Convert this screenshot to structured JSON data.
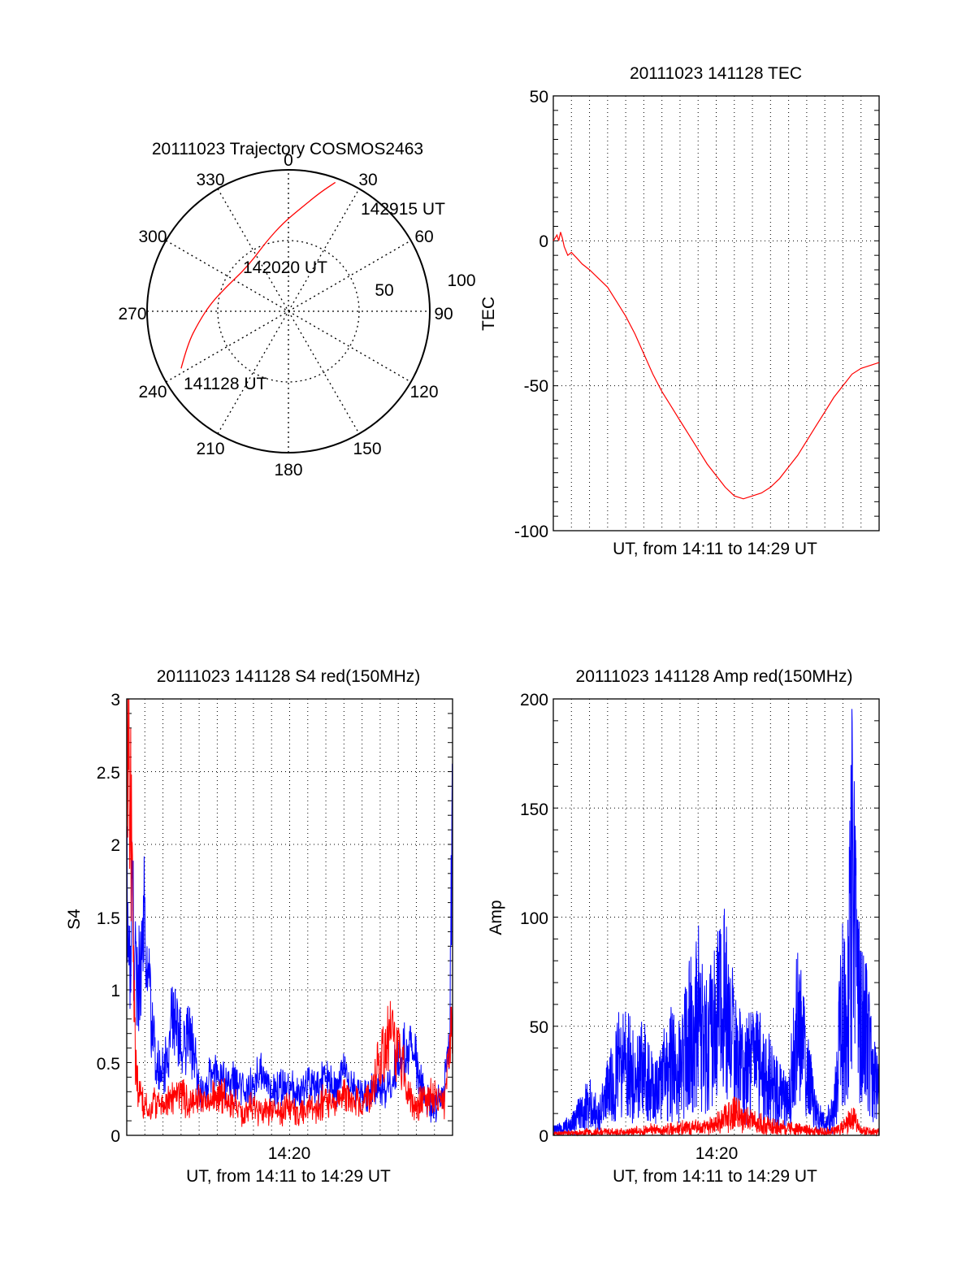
{
  "chart_data": [
    {
      "type": "polar",
      "title": "20111023 Trajectory COSMOS2463",
      "azimuth_labels": [
        "0",
        "30",
        "60",
        "90",
        "120",
        "150",
        "180",
        "210",
        "240",
        "270",
        "300",
        "330"
      ],
      "elevation_ring_labels": [
        "50",
        "100"
      ],
      "elevation_max": 100,
      "trajectory_color": "#ff0000",
      "trajectory_points_az_r": [
        [
          242,
          86
        ],
        [
          252,
          75
        ],
        [
          263,
          64
        ],
        [
          276,
          55
        ],
        [
          292,
          47
        ],
        [
          310,
          43
        ],
        [
          328,
          45
        ],
        [
          343,
          52
        ],
        [
          357,
          63
        ],
        [
          8,
          75
        ],
        [
          15,
          87
        ],
        [
          20,
          97
        ]
      ],
      "annotations": [
        {
          "text": "142915 UT",
          "at": "end"
        },
        {
          "text": "142020 UT",
          "at": "middle"
        },
        {
          "text": "141128 UT",
          "at": "start"
        }
      ]
    },
    {
      "type": "line",
      "title": "20111023 141128 TEC",
      "xlabel": "UT, from 14:11 to 14:29 UT",
      "ylabel": "TEC",
      "xlim": [
        0,
        18.0
      ],
      "ylim": [
        -100,
        50
      ],
      "yticks": [
        "50",
        "0",
        "-50",
        "-100"
      ],
      "grid": true,
      "series": [
        {
          "color": "#ff0000",
          "x": [
            0.0,
            0.2,
            0.3,
            0.4,
            0.5,
            0.6,
            0.8,
            1.0,
            1.3,
            1.6,
            2.0,
            2.5,
            3.0,
            3.5,
            4.0,
            4.5,
            5.0,
            5.5,
            6.0,
            6.5,
            7.0,
            7.5,
            8.0,
            8.5,
            9.0,
            9.5,
            10.0,
            10.5,
            11.0,
            11.5,
            12.0,
            12.5,
            13.0,
            13.5,
            14.0,
            14.5,
            15.0,
            15.5,
            16.0,
            16.5,
            17.0,
            17.5,
            18.0
          ],
          "y": [
            0,
            2,
            0,
            3,
            1,
            -2,
            -5,
            -4,
            -6,
            -8,
            -10,
            -13,
            -16,
            -21,
            -26,
            -32,
            -39,
            -46,
            -52,
            -57,
            -62,
            -67,
            -72,
            -77,
            -81,
            -85,
            -88,
            -89,
            -88,
            -87,
            -85,
            -82,
            -78,
            -74,
            -69,
            -64,
            -59,
            -54,
            -50,
            -46,
            -44,
            -43,
            -42
          ]
        }
      ]
    },
    {
      "type": "line",
      "title": "20111023 141128 S4 red(150MHz)",
      "xlabel": "UT, from 14:11 to 14:29 UT",
      "ylabel": "S4",
      "xlim": [
        0,
        18.0
      ],
      "ylim": [
        0,
        3
      ],
      "xtick_label": "14:20",
      "xtick_value": 9.0,
      "yticks": [
        "3",
        "2.5",
        "2",
        "1.5",
        "1",
        "0.5",
        "0"
      ],
      "grid": true,
      "series": [
        {
          "color": "#0000ff",
          "x": [
            0.0,
            0.1,
            0.2,
            0.3,
            0.4,
            0.5,
            0.6,
            0.8,
            1.0,
            1.2,
            1.4,
            1.6,
            1.8,
            2.0,
            2.3,
            2.6,
            3.0,
            3.5,
            4.0,
            4.5,
            5.0,
            5.5,
            6.0,
            6.5,
            7.0,
            7.5,
            8.0,
            8.5,
            9.0,
            9.5,
            10.0,
            10.5,
            11.0,
            11.5,
            12.0,
            12.5,
            13.0,
            13.5,
            14.0,
            14.5,
            15.0,
            15.5,
            16.0,
            16.5,
            17.0,
            17.5,
            17.8,
            18.0
          ],
          "y": [
            1.8,
            1.5,
            1.2,
            1.7,
            1.3,
            1.1,
            1.0,
            1.2,
            1.5,
            1.1,
            0.7,
            0.5,
            0.45,
            0.42,
            0.55,
            0.9,
            0.6,
            0.7,
            0.3,
            0.4,
            0.45,
            0.35,
            0.4,
            0.3,
            0.35,
            0.4,
            0.3,
            0.35,
            0.3,
            0.28,
            0.35,
            0.3,
            0.4,
            0.3,
            0.45,
            0.35,
            0.25,
            0.3,
            0.28,
            0.3,
            0.5,
            0.6,
            0.55,
            0.25,
            0.2,
            0.3,
            0.6,
            2.1
          ]
        },
        {
          "color": "#ff0000",
          "x": [
            0.0,
            0.1,
            0.2,
            0.3,
            0.4,
            0.5,
            0.6,
            0.7,
            0.8,
            1.0,
            1.2,
            1.5,
            2.0,
            2.5,
            3.0,
            3.5,
            4.0,
            4.5,
            5.0,
            5.5,
            6.0,
            6.5,
            7.0,
            7.5,
            8.0,
            8.5,
            9.0,
            9.5,
            10.0,
            10.5,
            11.0,
            11.5,
            12.0,
            12.5,
            13.0,
            13.5,
            14.0,
            14.5,
            15.0,
            15.5,
            16.0,
            16.5,
            17.0,
            17.5,
            18.0
          ],
          "y": [
            2.8,
            3.0,
            2.4,
            1.6,
            1.0,
            0.5,
            0.35,
            0.3,
            0.25,
            0.2,
            0.18,
            0.22,
            0.2,
            0.25,
            0.3,
            0.2,
            0.25,
            0.2,
            0.3,
            0.25,
            0.2,
            0.15,
            0.2,
            0.15,
            0.18,
            0.15,
            0.2,
            0.15,
            0.22,
            0.18,
            0.25,
            0.2,
            0.3,
            0.25,
            0.2,
            0.3,
            0.5,
            0.7,
            0.6,
            0.3,
            0.2,
            0.25,
            0.3,
            0.2,
            0.8
          ]
        }
      ]
    },
    {
      "type": "line",
      "title": "20111023 141128 Amp red(150MHz)",
      "xlabel": "UT, from 14:11 to 14:29 UT",
      "ylabel": "Amp",
      "xlim": [
        0,
        18.0
      ],
      "ylim": [
        0,
        200
      ],
      "xtick_label": "14:20",
      "xtick_value": 9.0,
      "yticks": [
        "200",
        "150",
        "100",
        "50",
        "0"
      ],
      "grid": true,
      "series": [
        {
          "color": "#0000ff",
          "x": [
            0.0,
            0.5,
            1.0,
            1.5,
            2.0,
            2.5,
            3.0,
            3.5,
            4.0,
            4.5,
            5.0,
            5.5,
            6.0,
            6.5,
            7.0,
            7.5,
            8.0,
            8.5,
            9.0,
            9.5,
            10.0,
            10.5,
            11.0,
            11.5,
            12.0,
            12.5,
            13.0,
            13.5,
            14.0,
            14.5,
            15.0,
            15.5,
            16.0,
            16.2,
            16.5,
            16.8,
            17.0,
            17.3,
            17.6,
            18.0
          ],
          "y": [
            2,
            3,
            5,
            10,
            15,
            8,
            20,
            30,
            35,
            25,
            30,
            20,
            25,
            35,
            30,
            45,
            55,
            40,
            50,
            60,
            40,
            30,
            35,
            30,
            25,
            20,
            15,
            50,
            30,
            10,
            5,
            10,
            60,
            40,
            112,
            60,
            50,
            55,
            30,
            20
          ]
        },
        {
          "color": "#ff0000",
          "x": [
            0.0,
            1.0,
            2.0,
            3.0,
            4.0,
            5.0,
            6.0,
            7.0,
            8.0,
            9.0,
            10.0,
            11.0,
            12.0,
            13.0,
            14.0,
            15.0,
            16.0,
            16.5,
            17.0,
            17.5,
            18.0
          ],
          "y": [
            0,
            0,
            1,
            1,
            1,
            2,
            2,
            3,
            3,
            5,
            10,
            6,
            4,
            3,
            2,
            1,
            3,
            8,
            2,
            1,
            1
          ]
        }
      ]
    }
  ]
}
